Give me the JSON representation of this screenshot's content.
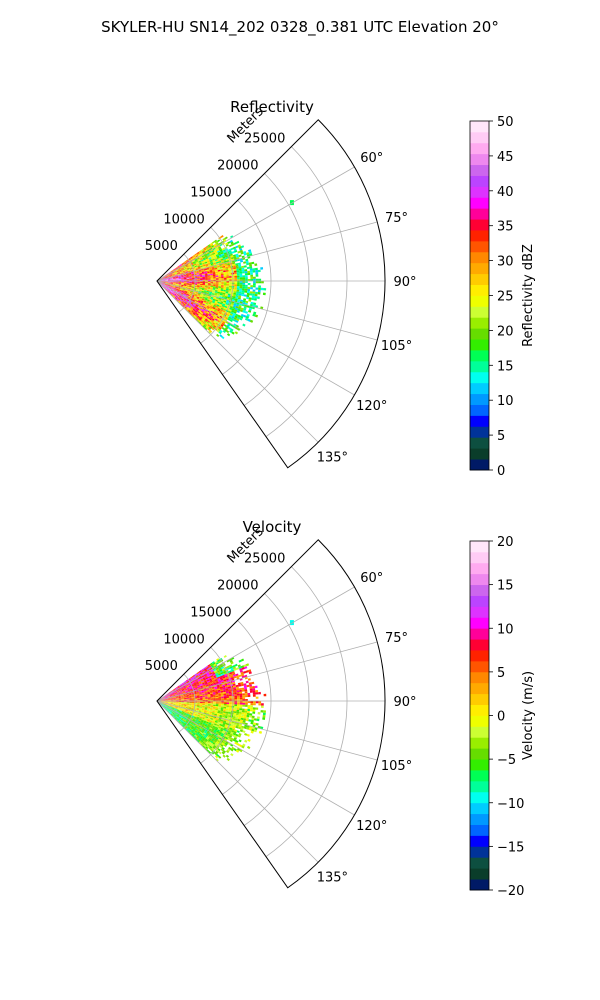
{
  "suptitle": "SKYLER-HU  SN14_202  0328_0.381 UTC Elevation 20°",
  "chart_data": [
    {
      "type": "heatmap",
      "projection": "polar-sector",
      "title": "Reflectivity",
      "range_axis_label": "Meters",
      "range_ticks": [
        5000,
        10000,
        15000,
        20000,
        25000
      ],
      "range_tick_labels": [
        "5000",
        "10000",
        "15000",
        "20000",
        "25000"
      ],
      "r_max": 30000,
      "theta_range_deg": [
        45,
        145
      ],
      "theta_ticks_deg": [
        60,
        75,
        90,
        105,
        120,
        135
      ],
      "theta_tick_labels": [
        "60°",
        "75°",
        "90°",
        "105°",
        "120°",
        "135°"
      ],
      "grid": true,
      "data_extent": {
        "r_max": 14000,
        "theta_min_deg": 55,
        "theta_max_deg": 135
      },
      "colorbar": {
        "label": "Reflectivity dBZ",
        "min": 0,
        "max": 50,
        "ticks": [
          0,
          5,
          10,
          15,
          20,
          25,
          30,
          35,
          40,
          45,
          50
        ],
        "tick_labels": [
          "0",
          "5",
          "10",
          "15",
          "20",
          "25",
          "30",
          "35",
          "40",
          "45",
          "50"
        ],
        "colors": [
          "#001a66",
          "#0a3d2a",
          "#0d4f40",
          "#003399",
          "#0000ff",
          "#0066ff",
          "#0099ff",
          "#00ccff",
          "#00ffee",
          "#00ff99",
          "#00ff55",
          "#33ee00",
          "#66dd00",
          "#99ee00",
          "#ccff33",
          "#eeff00",
          "#ffee00",
          "#ffcc00",
          "#ffaa00",
          "#ff8800",
          "#ff5500",
          "#ff2200",
          "#ff0033",
          "#ff0099",
          "#ff00ff",
          "#dd33ff",
          "#bb44ff",
          "#cc66ee",
          "#ee88ee",
          "#ffaaf0",
          "#ffccf5",
          "#ffe6fa"
        ]
      }
    },
    {
      "type": "heatmap",
      "projection": "polar-sector",
      "title": "Velocity",
      "range_axis_label": "Meters",
      "range_ticks": [
        5000,
        10000,
        15000,
        20000,
        25000
      ],
      "range_tick_labels": [
        "5000",
        "10000",
        "15000",
        "20000",
        "25000"
      ],
      "r_max": 30000,
      "theta_range_deg": [
        45,
        145
      ],
      "theta_ticks_deg": [
        60,
        75,
        90,
        105,
        120,
        135
      ],
      "theta_tick_labels": [
        "60°",
        "75°",
        "90°",
        "105°",
        "120°",
        "135°"
      ],
      "grid": true,
      "data_extent": {
        "r_max": 14000,
        "theta_min_deg": 55,
        "theta_max_deg": 135
      },
      "colorbar": {
        "label": "Velocity (m/s)",
        "min": -20,
        "max": 20,
        "ticks": [
          -20,
          -15,
          -10,
          -5,
          0,
          5,
          10,
          15,
          20
        ],
        "tick_labels": [
          "−20",
          "−15",
          "−10",
          "−5",
          "0",
          "5",
          "10",
          "15",
          "20"
        ],
        "colors": [
          "#001a66",
          "#0a3d2a",
          "#0d4f40",
          "#003399",
          "#0000ff",
          "#0066ff",
          "#0099ff",
          "#00ccff",
          "#00ffee",
          "#00ff99",
          "#00ff55",
          "#33ee00",
          "#66dd00",
          "#99ee00",
          "#ccff33",
          "#eeff00",
          "#ffee00",
          "#ffcc00",
          "#ffaa00",
          "#ff8800",
          "#ff5500",
          "#ff2200",
          "#ff0033",
          "#ff0099",
          "#ff00ff",
          "#dd33ff",
          "#bb44ff",
          "#cc66ee",
          "#ee88ee",
          "#ffaaf0",
          "#ffccf5",
          "#ffe6fa"
        ]
      }
    }
  ]
}
